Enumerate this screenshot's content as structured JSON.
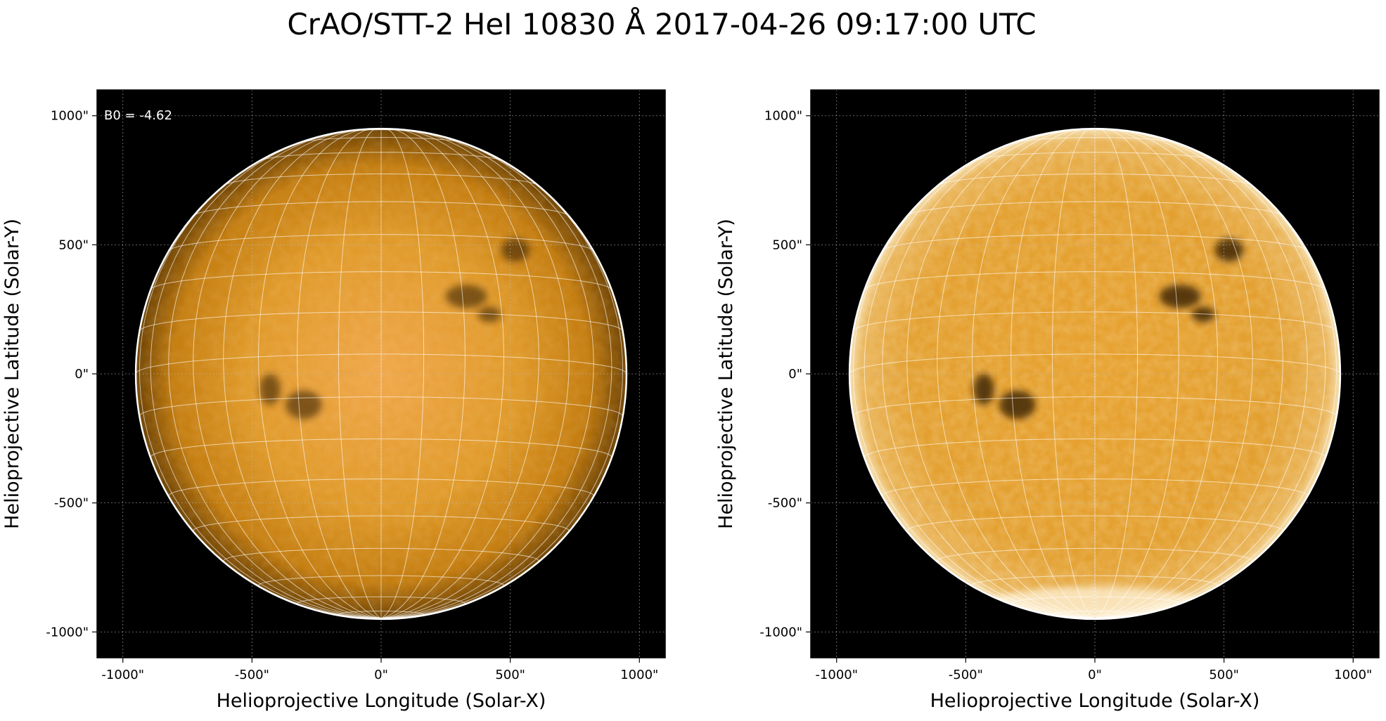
{
  "figure": {
    "title": "CrAO/STT-2 HeI 10830 Å 2017-04-26 09:17:00 UTC"
  },
  "colors": {
    "background": "#000000",
    "disk_base": "#d98a10",
    "grid": "#ffffff",
    "limb": "#ffffff"
  },
  "panels": [
    {
      "name": "left-panel",
      "annotation": "B0 = -4.62",
      "xlabel": "Helioprojective Longitude (Solar-X)",
      "ylabel": "Helioprojective Latitude (Solar-Y)",
      "xticks": [
        "-1000\"",
        "-500\"",
        "0\"",
        "500\"",
        "1000\""
      ],
      "yticks": [
        "1000\"",
        "500\"",
        "0\"",
        "-500\"",
        "-1000\""
      ],
      "processing": "raw"
    },
    {
      "name": "right-panel",
      "annotation": "",
      "xlabel": "Helioprojective Longitude (Solar-X)",
      "ylabel": "Helioprojective Latitude (Solar-Y)",
      "xticks": [
        "-1000\"",
        "-500\"",
        "0\"",
        "500\"",
        "1000\""
      ],
      "yticks": [
        "1000\"",
        "500\"",
        "0\"",
        "-500\"",
        "-1000\""
      ],
      "processing": "enhanced"
    }
  ],
  "chart_data": {
    "type": "heatmap",
    "xlim": [
      -1100,
      1100
    ],
    "ylim": [
      -1100,
      1100
    ],
    "xtick_values": [
      -1000,
      -500,
      0,
      500,
      1000
    ],
    "ytick_values": [
      1000,
      500,
      0,
      -500,
      -1000
    ],
    "solar_radius_arcsec": 950,
    "grid": true,
    "heliographic_grid_spacing_deg": 10
  }
}
